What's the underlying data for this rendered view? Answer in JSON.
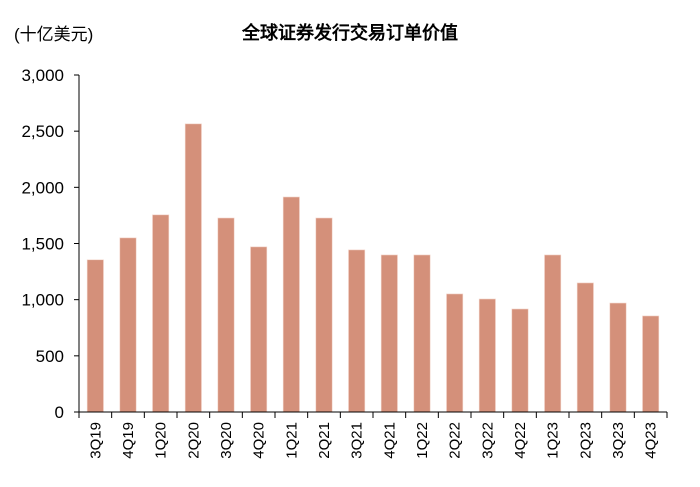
{
  "header": {
    "unit_label": "(十亿美元)",
    "title": "全球证券发行交易订单价值"
  },
  "colors": {
    "bar": "#d4907a",
    "axis": "#000000",
    "background": "#ffffff"
  },
  "chart_data": {
    "type": "bar",
    "title": "全球证券发行交易订单价值",
    "ylabel": "(十亿美元)",
    "xlabel": "",
    "categories": [
      "3Q19",
      "4Q19",
      "1Q20",
      "2Q20",
      "3Q20",
      "4Q20",
      "1Q21",
      "2Q21",
      "3Q21",
      "4Q21",
      "1Q22",
      "2Q22",
      "3Q22",
      "4Q22",
      "1Q23",
      "2Q23",
      "3Q23",
      "4Q23"
    ],
    "values": [
      1355,
      1550,
      1755,
      2565,
      1727,
      1470,
      1914,
      1727,
      1443,
      1398,
      1398,
      1051,
      1006,
      917,
      1398,
      1149,
      970,
      855
    ],
    "ylim": [
      0,
      3000
    ],
    "yticks": [
      0,
      500,
      1000,
      1500,
      2000,
      2500,
      3000
    ],
    "ytick_labels": [
      "0",
      "500",
      "1,000",
      "1,500",
      "2,000",
      "2,500",
      "3,000"
    ],
    "grid": false,
    "legend": null,
    "x_tick_rotation": -90
  }
}
